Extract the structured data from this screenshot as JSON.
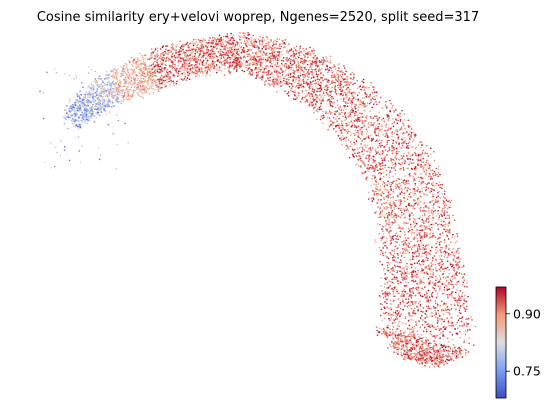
{
  "chart_data": {
    "type": "scatter",
    "title": "Cosine similarity ery+velovi woprep, Ngenes=2520, split seed=317",
    "xlabel": "",
    "ylabel": "",
    "axes_visible": false,
    "grid": false,
    "colormap": "coolwarm",
    "color_range": [
      0.68,
      0.97
    ],
    "colorbar": {
      "placement": "bottom-right",
      "ticks": [
        {
          "value": 0.75,
          "label": "0.75"
        },
        {
          "value": 0.9,
          "label": "0.90"
        }
      ]
    },
    "point_count_approx": 6500,
    "description_of_values": "Cells on a curved embedding; high similarity (≈0.90–0.97, red) across the main arc, lower similarity (≈0.70–0.85, blue/white) at the upper-left tip.",
    "series": [
      {
        "name": "",
        "embedding_region": "upper-left tip",
        "similarity_range": [
          0.68,
          0.85
        ]
      },
      {
        "name": "",
        "embedding_region": "main arc",
        "similarity_range": [
          0.85,
          0.97
        ]
      }
    ]
  }
}
